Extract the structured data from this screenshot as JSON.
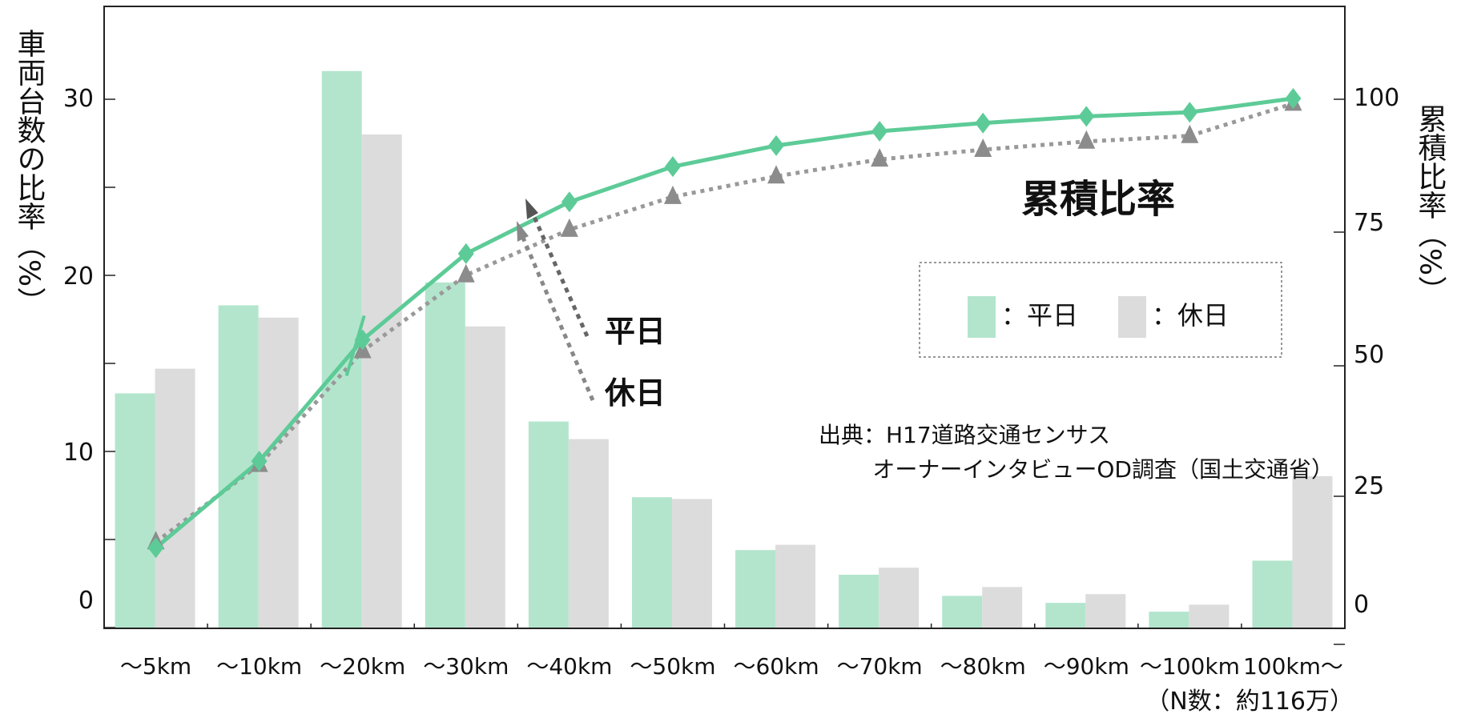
{
  "chart_data": {
    "type": "bar",
    "categories": [
      "〜5km",
      "〜10km",
      "〜20km",
      "〜30km",
      "〜40km",
      "〜50km",
      "〜60km",
      "〜70km",
      "〜80km",
      "〜90km",
      "〜100km",
      "100km〜"
    ],
    "series": [
      {
        "name": "平日",
        "values": [
          13.3,
          18.3,
          31.6,
          19.6,
          11.7,
          7.4,
          4.4,
          3.0,
          1.8,
          1.4,
          0.9,
          3.8
        ]
      },
      {
        "name": "休日",
        "values": [
          14.7,
          17.6,
          28.0,
          17.1,
          10.7,
          7.3,
          4.7,
          3.4,
          2.3,
          1.9,
          1.3,
          8.6
        ]
      }
    ],
    "cumulative_series": [
      {
        "name": "平日",
        "values": [
          12.3,
          29.2,
          52.9,
          69.7,
          79.8,
          86.7,
          90.8,
          93.6,
          95.2,
          96.5,
          97.3,
          100
        ]
      },
      {
        "name": "休日",
        "values": [
          13.4,
          28.5,
          50.7,
          65.5,
          74.4,
          80.8,
          84.8,
          88.1,
          90.0,
          91.6,
          92.7,
          99.0
        ]
      }
    ],
    "ylabel": "車両台数の比率（%）",
    "y2label": "累積比率（%）",
    "ylim": [
      0,
      35
    ],
    "y2lim": [
      -8,
      105
    ],
    "yticks": [
      0,
      10,
      20,
      30
    ],
    "y2ticks": [
      0,
      25,
      50,
      75,
      100
    ],
    "colors": {
      "weekday_bar": "#b3e5cd",
      "holiday_bar": "#dcdcdc",
      "weekday_line": "#5dcb97",
      "holiday_line": "#999999",
      "annotation_arrow": "#707070"
    },
    "annotations": {
      "cumulative_title": "累積比率",
      "weekday": "平日",
      "holiday": "休日",
      "source_line1": "出典：H17道路交通センサス",
      "source_line2": "オーナーインタビューOD調査（国土交通省）",
      "sample_size": "（N数：約116万）"
    },
    "legend": {
      "weekday": "：平日",
      "holiday": "：休日",
      "placement": "upper-right"
    }
  }
}
